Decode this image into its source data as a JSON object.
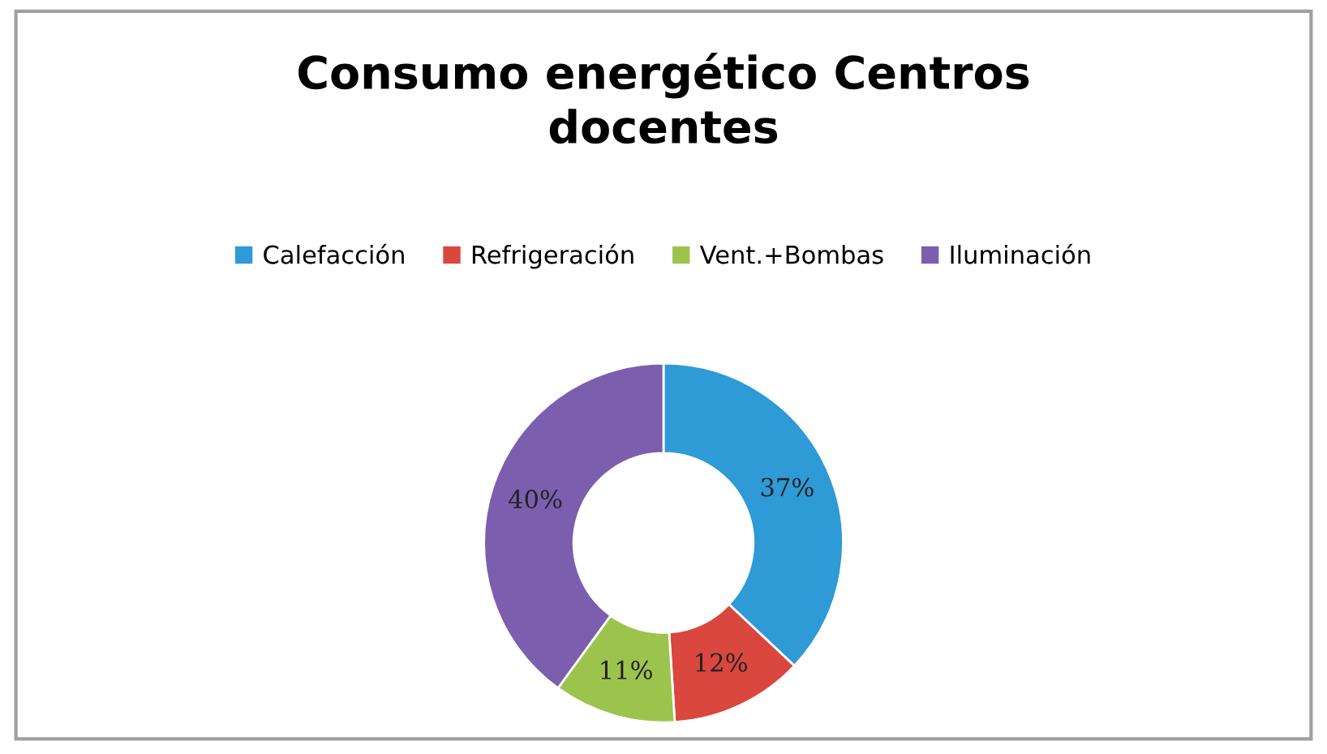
{
  "chart_data": {
    "type": "donut",
    "title": "Consumo energético Centros\ndocentes",
    "categories": [
      "Calefacción",
      "Refrigeración",
      "Vent.+Bombas",
      "Iluminación"
    ],
    "values": [
      37,
      12,
      11,
      40
    ],
    "value_labels": [
      "37%",
      "12%",
      "11%",
      "40%"
    ],
    "colors": [
      "#2e9ad6",
      "#d9473f",
      "#9cc44c",
      "#7b5fae"
    ],
    "legend": "top"
  }
}
